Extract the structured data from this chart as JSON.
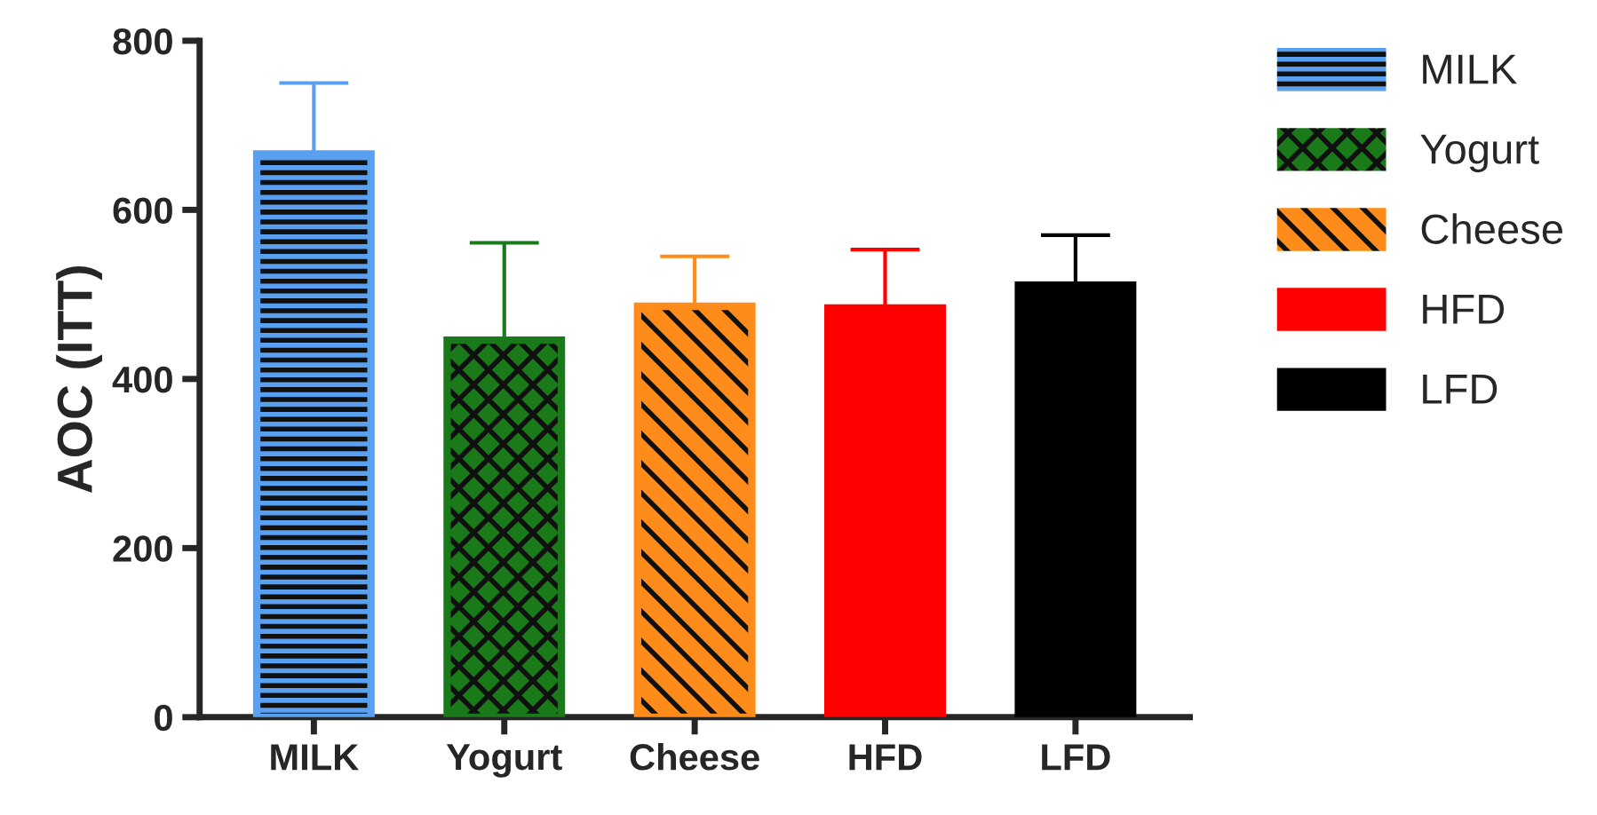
{
  "chart_data": {
    "type": "bar",
    "ylabel": "AOC (ITT)",
    "categories": [
      "MILK",
      "Yogurt",
      "Cheese",
      "HFD",
      "LFD"
    ],
    "series": [
      {
        "name": "MILK",
        "color": "#5aa0f0",
        "values": [
          666,
          null,
          null,
          null,
          null
        ],
        "errors": [
          [
            666,
            750
          ],
          null,
          null,
          null,
          null
        ]
      },
      {
        "name": "Yogurt",
        "color": "#1a7a1a",
        "values": [
          null,
          446,
          null,
          null,
          null
        ],
        "errors": [
          null,
          [
            446,
            561
          ],
          null,
          null,
          null
        ]
      },
      {
        "name": "Cheese",
        "color": "#ff8c1a",
        "values": [
          null,
          null,
          486,
          null,
          null
        ],
        "errors": [
          null,
          null,
          [
            486,
            545
          ],
          null,
          null
        ]
      },
      {
        "name": "HFD",
        "color": "#ff0000",
        "values": [
          null,
          null,
          null,
          484,
          null
        ],
        "errors": [
          null,
          null,
          null,
          [
            484,
            553
          ],
          null
        ]
      },
      {
        "name": "LFD",
        "color": "#000000",
        "values": [
          null,
          null,
          null,
          null,
          511
        ],
        "errors": [
          null,
          null,
          null,
          null,
          [
            511,
            570
          ]
        ]
      }
    ],
    "ylim": [
      0,
      800
    ],
    "yticks": [
      0,
      200,
      400,
      600,
      800
    ],
    "grid": false,
    "legend": "right"
  }
}
